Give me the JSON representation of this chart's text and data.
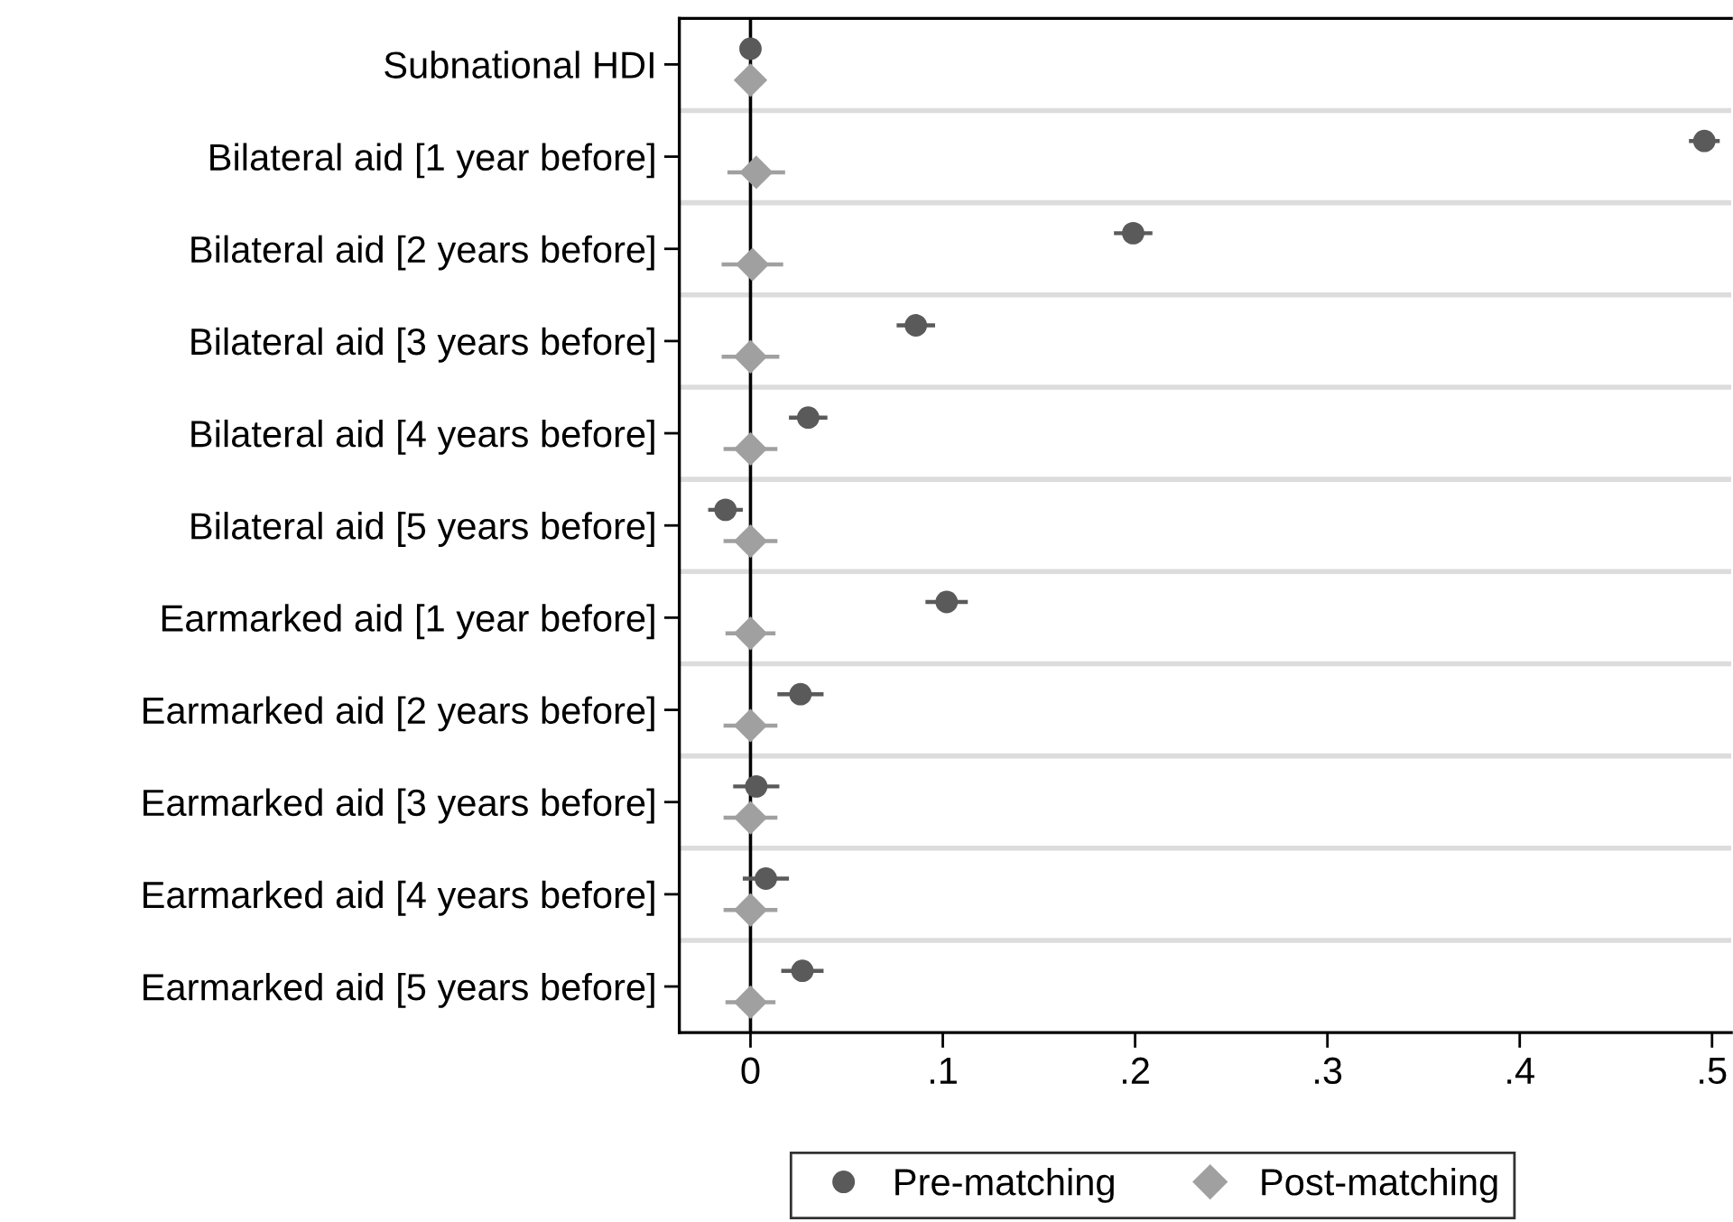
{
  "chart_data": {
    "type": "scatter",
    "orientation": "horizontal",
    "categories": [
      "Subnational HDI",
      "Bilateral aid [1 year before]",
      "Bilateral aid [2 years before]",
      "Bilateral aid [3 years before]",
      "Bilateral aid [4 years before]",
      "Bilateral aid [5 years before]",
      "Earmarked aid [1 year before]",
      "Earmarked aid [2 years before]",
      "Earmarked aid [3 years before]",
      "Earmarked aid [4 years before]",
      "Earmarked aid [5 years before]"
    ],
    "series": [
      {
        "name": "Pre-matching",
        "color": "#5a5a5a",
        "marker": "circle",
        "values": [
          0,
          0.496,
          0.199,
          0.086,
          0.03,
          -0.013,
          0.102,
          0.026,
          0.003,
          0.008,
          0.027
        ],
        "errors": [
          null,
          0.008,
          0.01,
          0.01,
          0.01,
          0.009,
          0.011,
          0.012,
          0.012,
          0.012,
          0.011
        ]
      },
      {
        "name": "Post-matching",
        "color": "#a0a0a0",
        "marker": "diamond",
        "values": [
          0,
          0.003,
          0.001,
          0,
          0,
          0,
          0,
          0,
          0,
          0,
          0
        ],
        "errors": [
          null,
          0.015,
          0.016,
          0.015,
          0.014,
          0.014,
          0.013,
          0.014,
          0.014,
          0.014,
          0.013
        ]
      }
    ],
    "xlim": [
      -0.037,
      0.51
    ],
    "xticks": [
      {
        "value": 0,
        "label": "0"
      },
      {
        "value": 0.1,
        "label": ".1"
      },
      {
        "value": 0.2,
        "label": ".2"
      },
      {
        "value": 0.3,
        "label": ".3"
      },
      {
        "value": 0.4,
        "label": ".4"
      },
      {
        "value": 0.5,
        "label": ".5"
      }
    ],
    "ref_lines": [
      {
        "axis": "x",
        "value": 0,
        "color": "#000000"
      }
    ],
    "grid": "y",
    "legend": "bottom"
  }
}
